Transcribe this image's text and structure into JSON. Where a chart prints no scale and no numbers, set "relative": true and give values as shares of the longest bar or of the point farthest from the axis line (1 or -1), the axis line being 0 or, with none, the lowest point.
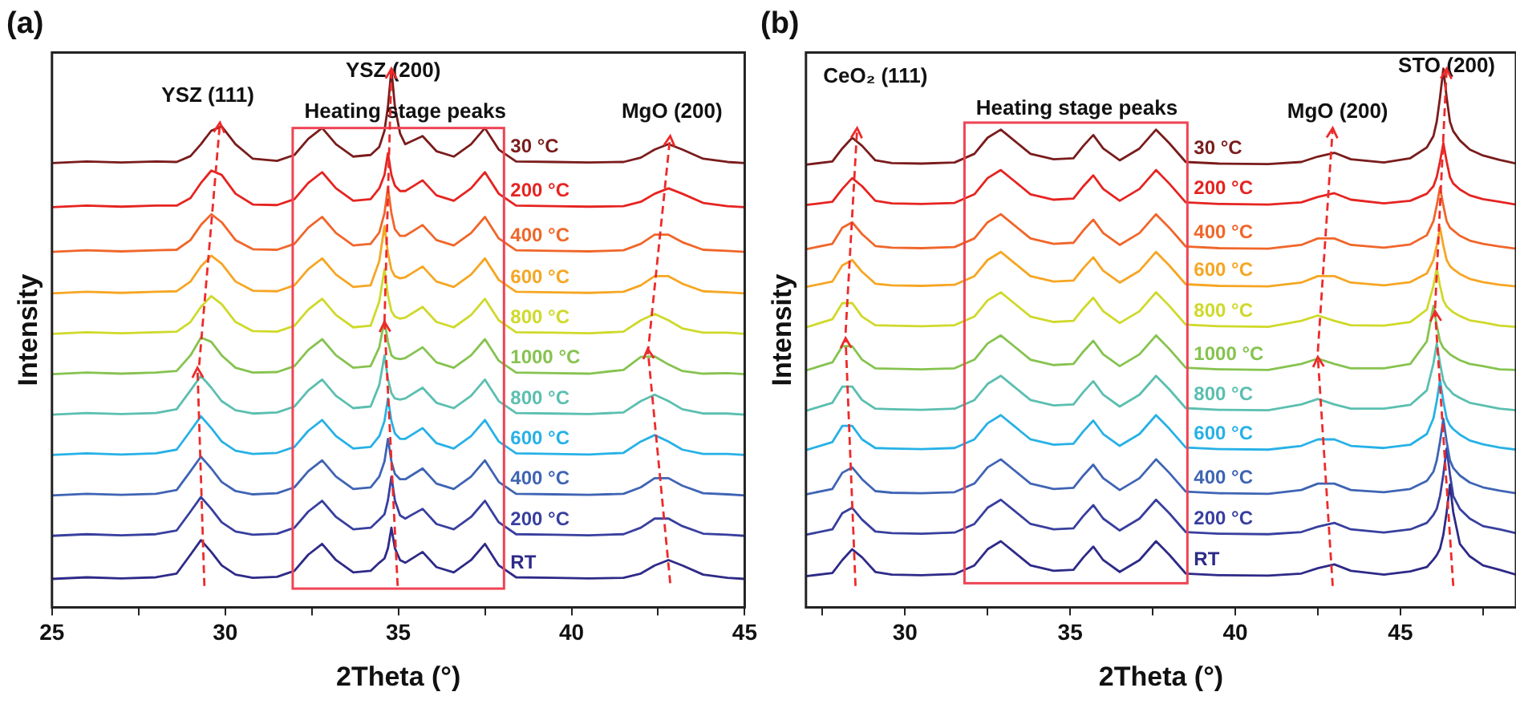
{
  "chart_data": [
    {
      "type": "line",
      "title": "(a)",
      "xlabel": "2Theta (°)",
      "ylabel": "Intensity",
      "relative": true,
      "x": [
        25,
        26,
        27,
        28,
        28.6,
        29,
        29.3,
        29.6,
        29.9,
        30.3,
        30.8,
        31.5,
        32,
        32.4,
        32.8,
        33.2,
        33.7,
        34.2,
        34.45,
        34.6,
        34.7,
        34.8,
        34.9,
        35.05,
        35.2,
        35.7,
        36.1,
        36.6,
        37.1,
        37.5,
        37.9,
        38.4,
        39.5,
        40.5,
        41.5,
        42,
        42.4,
        42.8,
        43.2,
        43.8,
        44.5,
        45
      ],
      "xlim": [
        25,
        45
      ],
      "xticks": [
        25,
        {
          "value": 27.5,
          "label": null
        },
        30,
        {
          "value": 32.5,
          "label": null
        },
        35,
        {
          "value": 37.5,
          "label": null
        },
        40,
        {
          "value": 42.5,
          "label": null
        },
        45
      ],
      "annotations": [
        "YSZ (111)",
        "YSZ (200)",
        "Heating stage peaks",
        "MgO (200)"
      ],
      "series": [
        {
          "name": "30 °C",
          "color": "#7a1c1c",
          "values": [
            0.825,
            0.828,
            0.826,
            0.828,
            0.827,
            0.838,
            0.86,
            0.885,
            0.893,
            0.86,
            0.833,
            0.829,
            0.84,
            0.87,
            0.89,
            0.86,
            0.837,
            0.84,
            0.855,
            0.885,
            0.93,
            1,
            0.93,
            0.88,
            0.86,
            0.875,
            0.847,
            0.837,
            0.86,
            0.89,
            0.85,
            0.828,
            0.827,
            0.826,
            0.827,
            0.835,
            0.85,
            0.86,
            0.85,
            0.833,
            0.827,
            0.825
          ]
        },
        {
          "name": "200 °C",
          "color": "#e52421",
          "values": [
            0.743,
            0.746,
            0.744,
            0.746,
            0.746,
            0.76,
            0.788,
            0.811,
            0.803,
            0.768,
            0.748,
            0.747,
            0.758,
            0.788,
            0.808,
            0.778,
            0.755,
            0.758,
            0.778,
            0.803,
            0.843,
            0.803,
            0.783,
            0.773,
            0.773,
            0.793,
            0.765,
            0.755,
            0.778,
            0.808,
            0.768,
            0.746,
            0.745,
            0.744,
            0.745,
            0.753,
            0.768,
            0.778,
            0.768,
            0.751,
            0.745,
            0.743
          ]
        },
        {
          "name": "400 °C",
          "color": "#f0662a",
          "values": [
            0.66,
            0.663,
            0.661,
            0.663,
            0.664,
            0.682,
            0.71,
            0.73,
            0.715,
            0.682,
            0.665,
            0.664,
            0.675,
            0.705,
            0.725,
            0.695,
            0.672,
            0.675,
            0.696,
            0.732,
            0.78,
            0.732,
            0.702,
            0.69,
            0.69,
            0.71,
            0.682,
            0.672,
            0.695,
            0.725,
            0.685,
            0.663,
            0.662,
            0.661,
            0.663,
            0.675,
            0.692,
            0.692,
            0.678,
            0.664,
            0.662,
            0.66
          ]
        },
        {
          "name": "600 °C",
          "color": "#f6a623",
          "values": [
            0.583,
            0.586,
            0.584,
            0.586,
            0.587,
            0.605,
            0.633,
            0.653,
            0.638,
            0.605,
            0.588,
            0.587,
            0.598,
            0.628,
            0.648,
            0.618,
            0.595,
            0.598,
            0.643,
            0.708,
            0.658,
            0.627,
            0.615,
            0.611,
            0.613,
            0.633,
            0.605,
            0.595,
            0.618,
            0.648,
            0.608,
            0.586,
            0.585,
            0.584,
            0.586,
            0.598,
            0.615,
            0.615,
            0.601,
            0.587,
            0.585,
            0.583
          ]
        },
        {
          "name": "800 °C",
          "color": "#cfd92a",
          "values": [
            0.508,
            0.511,
            0.509,
            0.511,
            0.512,
            0.53,
            0.558,
            0.578,
            0.563,
            0.53,
            0.513,
            0.512,
            0.523,
            0.553,
            0.573,
            0.543,
            0.52,
            0.523,
            0.568,
            0.628,
            0.58,
            0.55,
            0.54,
            0.536,
            0.538,
            0.558,
            0.53,
            0.52,
            0.543,
            0.573,
            0.533,
            0.511,
            0.51,
            0.509,
            0.512,
            0.533,
            0.545,
            0.533,
            0.518,
            0.51,
            0.51,
            0.508
          ]
        },
        {
          "name": "1000 °C",
          "color": "#86c34f",
          "values": [
            0.433,
            0.436,
            0.434,
            0.436,
            0.439,
            0.468,
            0.501,
            0.493,
            0.468,
            0.445,
            0.436,
            0.437,
            0.448,
            0.478,
            0.498,
            0.468,
            0.445,
            0.448,
            0.483,
            0.533,
            0.493,
            0.468,
            0.463,
            0.461,
            0.463,
            0.483,
            0.455,
            0.445,
            0.468,
            0.498,
            0.458,
            0.436,
            0.435,
            0.434,
            0.441,
            0.465,
            0.466,
            0.451,
            0.439,
            0.434,
            0.435,
            0.433
          ]
        },
        {
          "name": "800 °C",
          "color": "#5bbfb0",
          "values": [
            0.358,
            0.361,
            0.359,
            0.361,
            0.368,
            0.403,
            0.43,
            0.408,
            0.383,
            0.366,
            0.36,
            0.362,
            0.373,
            0.403,
            0.423,
            0.393,
            0.37,
            0.373,
            0.413,
            0.468,
            0.424,
            0.398,
            0.388,
            0.386,
            0.388,
            0.408,
            0.38,
            0.37,
            0.393,
            0.423,
            0.383,
            0.361,
            0.36,
            0.359,
            0.362,
            0.383,
            0.395,
            0.383,
            0.368,
            0.36,
            0.36,
            0.358
          ]
        },
        {
          "name": "600 °C",
          "color": "#27b1e6",
          "values": [
            0.283,
            0.286,
            0.284,
            0.286,
            0.293,
            0.328,
            0.355,
            0.333,
            0.308,
            0.291,
            0.285,
            0.287,
            0.298,
            0.328,
            0.348,
            0.318,
            0.295,
            0.298,
            0.318,
            0.346,
            0.388,
            0.346,
            0.323,
            0.313,
            0.313,
            0.333,
            0.305,
            0.295,
            0.318,
            0.348,
            0.308,
            0.286,
            0.285,
            0.284,
            0.287,
            0.308,
            0.32,
            0.308,
            0.293,
            0.285,
            0.285,
            0.283
          ]
        },
        {
          "name": "400 °C",
          "color": "#3f64b4",
          "values": [
            0.208,
            0.211,
            0.209,
            0.211,
            0.218,
            0.253,
            0.28,
            0.258,
            0.233,
            0.216,
            0.21,
            0.212,
            0.223,
            0.253,
            0.273,
            0.243,
            0.22,
            0.223,
            0.243,
            0.271,
            0.313,
            0.271,
            0.248,
            0.238,
            0.238,
            0.258,
            0.23,
            0.22,
            0.243,
            0.273,
            0.233,
            0.211,
            0.21,
            0.209,
            0.211,
            0.223,
            0.24,
            0.24,
            0.226,
            0.212,
            0.21,
            0.208
          ]
        },
        {
          "name": "200 °C",
          "color": "#383f9e",
          "values": [
            0.133,
            0.136,
            0.134,
            0.136,
            0.143,
            0.178,
            0.205,
            0.183,
            0.158,
            0.141,
            0.135,
            0.137,
            0.148,
            0.178,
            0.198,
            0.168,
            0.145,
            0.148,
            0.163,
            0.173,
            0.199,
            0.243,
            0.199,
            0.171,
            0.165,
            0.183,
            0.155,
            0.145,
            0.168,
            0.198,
            0.158,
            0.136,
            0.135,
            0.134,
            0.136,
            0.148,
            0.165,
            0.165,
            0.151,
            0.137,
            0.135,
            0.133
          ]
        },
        {
          "name": "RT",
          "color": "#2e2a88",
          "values": [
            0.053,
            0.056,
            0.054,
            0.056,
            0.063,
            0.098,
            0.125,
            0.103,
            0.078,
            0.061,
            0.055,
            0.057,
            0.068,
            0.098,
            0.118,
            0.088,
            0.065,
            0.068,
            0.083,
            0.091,
            0.11,
            0.148,
            0.11,
            0.088,
            0.083,
            0.103,
            0.075,
            0.065,
            0.088,
            0.118,
            0.078,
            0.056,
            0.055,
            0.054,
            0.055,
            0.063,
            0.078,
            0.088,
            0.078,
            0.061,
            0.055,
            0.053
          ]
        }
      ]
    },
    {
      "type": "line",
      "title": "(b)",
      "xlabel": "2Theta (°)",
      "ylabel": "Intensity",
      "relative": true,
      "x": [
        27,
        27.8,
        28.1,
        28.4,
        28.7,
        29.1,
        29.6,
        30.5,
        31.5,
        32.1,
        32.5,
        32.9,
        33.3,
        33.8,
        34.5,
        35.1,
        35.4,
        35.7,
        36,
        36.5,
        37.1,
        37.6,
        38,
        38.5,
        39.5,
        41,
        42,
        42.5,
        43,
        43.5,
        44.5,
        45.3,
        45.8,
        46,
        46.1,
        46.2,
        46.3,
        46.4,
        46.5,
        46.6,
        46.8,
        47.1,
        47.5,
        48,
        48.5
      ],
      "xlim": [
        27,
        48.5
      ],
      "xticks": [
        {
          "value": 27.5,
          "label": null
        },
        30,
        {
          "value": 32.5,
          "label": null
        },
        35,
        {
          "value": 37.5,
          "label": null
        },
        40,
        {
          "value": 42.5,
          "label": null
        },
        45,
        {
          "value": 47.5,
          "label": null
        }
      ],
      "annotations": [
        "CeO₂ (111)",
        "Heating stage peaks",
        "MgO (200)",
        "STO (200)"
      ],
      "series": [
        {
          "name": "30 °C",
          "color": "#7a1c1c",
          "values": [
            0.822,
            0.828,
            0.852,
            0.872,
            0.857,
            0.83,
            0.825,
            0.824,
            0.826,
            0.842,
            0.872,
            0.887,
            0.867,
            0.842,
            0.832,
            0.834,
            0.857,
            0.877,
            0.852,
            0.83,
            0.852,
            0.887,
            0.862,
            0.827,
            0.824,
            0.823,
            0.827,
            0.837,
            0.844,
            0.832,
            0.826,
            0.834,
            0.854,
            0.875,
            0.902,
            0.947,
            1,
            0.947,
            0.902,
            0.884,
            0.867,
            0.85,
            0.839,
            0.831,
            0.824
          ]
        },
        {
          "name": "200 °C",
          "color": "#e52421",
          "values": [
            0.747,
            0.753,
            0.777,
            0.797,
            0.782,
            0.755,
            0.75,
            0.749,
            0.751,
            0.767,
            0.797,
            0.812,
            0.792,
            0.767,
            0.757,
            0.759,
            0.782,
            0.802,
            0.777,
            0.755,
            0.777,
            0.812,
            0.787,
            0.752,
            0.749,
            0.748,
            0.752,
            0.762,
            0.769,
            0.757,
            0.75,
            0.755,
            0.768,
            0.782,
            0.799,
            0.828,
            0.862,
            0.828,
            0.799,
            0.787,
            0.776,
            0.765,
            0.758,
            0.753,
            0.748
          ]
        },
        {
          "name": "400 °C",
          "color": "#f0662a",
          "values": [
            0.665,
            0.675,
            0.705,
            0.715,
            0.693,
            0.671,
            0.668,
            0.667,
            0.669,
            0.685,
            0.715,
            0.73,
            0.71,
            0.685,
            0.675,
            0.677,
            0.7,
            0.72,
            0.695,
            0.673,
            0.695,
            0.73,
            0.705,
            0.67,
            0.667,
            0.666,
            0.673,
            0.685,
            0.685,
            0.673,
            0.668,
            0.674,
            0.691,
            0.717,
            0.746,
            0.78,
            0.746,
            0.717,
            0.705,
            0.7,
            0.69,
            0.681,
            0.675,
            0.67,
            0.666
          ]
        },
        {
          "name": "600 °C",
          "color": "#f6a623",
          "values": [
            0.595,
            0.605,
            0.635,
            0.645,
            0.623,
            0.601,
            0.598,
            0.597,
            0.599,
            0.615,
            0.645,
            0.66,
            0.64,
            0.615,
            0.605,
            0.607,
            0.63,
            0.65,
            0.625,
            0.603,
            0.625,
            0.66,
            0.635,
            0.6,
            0.597,
            0.596,
            0.603,
            0.615,
            0.615,
            0.603,
            0.598,
            0.604,
            0.62,
            0.645,
            0.672,
            0.705,
            0.672,
            0.645,
            0.634,
            0.628,
            0.619,
            0.61,
            0.604,
            0.599,
            0.596
          ]
        },
        {
          "name": "800 °C",
          "color": "#cfd92a",
          "values": [
            0.52,
            0.535,
            0.565,
            0.565,
            0.54,
            0.524,
            0.523,
            0.522,
            0.524,
            0.54,
            0.57,
            0.585,
            0.565,
            0.54,
            0.53,
            0.532,
            0.555,
            0.575,
            0.55,
            0.528,
            0.55,
            0.585,
            0.56,
            0.525,
            0.522,
            0.521,
            0.532,
            0.542,
            0.532,
            0.524,
            0.523,
            0.53,
            0.553,
            0.597,
            0.63,
            0.597,
            0.57,
            0.559,
            0.553,
            0.548,
            0.541,
            0.533,
            0.529,
            0.523,
            0.521
          ]
        },
        {
          "name": "1000 °C",
          "color": "#86c34f",
          "values": [
            0.44,
            0.455,
            0.485,
            0.485,
            0.46,
            0.444,
            0.443,
            0.442,
            0.444,
            0.46,
            0.49,
            0.505,
            0.485,
            0.46,
            0.45,
            0.452,
            0.475,
            0.495,
            0.47,
            0.448,
            0.47,
            0.505,
            0.48,
            0.445,
            0.442,
            0.441,
            0.452,
            0.462,
            0.452,
            0.444,
            0.444,
            0.452,
            0.494,
            0.56,
            0.524,
            0.494,
            0.482,
            0.476,
            0.47,
            0.466,
            0.459,
            0.452,
            0.448,
            0.442,
            0.441
          ]
        },
        {
          "name": "800 °C",
          "color": "#5bbfb0",
          "values": [
            0.365,
            0.38,
            0.41,
            0.41,
            0.385,
            0.369,
            0.368,
            0.367,
            0.369,
            0.385,
            0.415,
            0.43,
            0.41,
            0.385,
            0.375,
            0.377,
            0.4,
            0.42,
            0.395,
            0.373,
            0.395,
            0.43,
            0.405,
            0.37,
            0.367,
            0.366,
            0.377,
            0.387,
            0.377,
            0.369,
            0.369,
            0.376,
            0.403,
            0.453,
            0.49,
            0.453,
            0.421,
            0.409,
            0.403,
            0.396,
            0.389,
            0.38,
            0.375,
            0.369,
            0.366
          ]
        },
        {
          "name": "600 °C",
          "color": "#27b1e6",
          "values": [
            0.292,
            0.307,
            0.337,
            0.337,
            0.312,
            0.296,
            0.295,
            0.294,
            0.296,
            0.312,
            0.342,
            0.357,
            0.337,
            0.312,
            0.302,
            0.304,
            0.327,
            0.347,
            0.322,
            0.3,
            0.322,
            0.357,
            0.332,
            0.297,
            0.294,
            0.293,
            0.3,
            0.312,
            0.312,
            0.3,
            0.296,
            0.302,
            0.322,
            0.351,
            0.383,
            0.422,
            0.383,
            0.351,
            0.338,
            0.331,
            0.321,
            0.31,
            0.303,
            0.297,
            0.293
          ]
        },
        {
          "name": "400 °C",
          "color": "#3f64b4",
          "values": [
            0.21,
            0.22,
            0.25,
            0.26,
            0.238,
            0.216,
            0.213,
            0.212,
            0.214,
            0.23,
            0.26,
            0.275,
            0.255,
            0.23,
            0.22,
            0.222,
            0.245,
            0.265,
            0.24,
            0.218,
            0.24,
            0.275,
            0.25,
            0.215,
            0.212,
            0.211,
            0.218,
            0.23,
            0.23,
            0.218,
            0.214,
            0.22,
            0.235,
            0.252,
            0.273,
            0.308,
            0.35,
            0.308,
            0.273,
            0.259,
            0.245,
            0.232,
            0.223,
            0.217,
            0.212
          ]
        },
        {
          "name": "200 °C",
          "color": "#383f9e",
          "values": [
            0.135,
            0.145,
            0.175,
            0.185,
            0.163,
            0.141,
            0.138,
            0.137,
            0.139,
            0.155,
            0.185,
            0.2,
            0.18,
            0.155,
            0.145,
            0.147,
            0.17,
            0.19,
            0.165,
            0.143,
            0.165,
            0.2,
            0.175,
            0.14,
            0.137,
            0.136,
            0.14,
            0.15,
            0.157,
            0.145,
            0.139,
            0.145,
            0.157,
            0.172,
            0.183,
            0.207,
            0.247,
            0.295,
            0.247,
            0.207,
            0.183,
            0.165,
            0.151,
            0.145,
            0.138
          ]
        },
        {
          "name": "RT",
          "color": "#2e2a88",
          "values": [
            0.058,
            0.064,
            0.088,
            0.108,
            0.093,
            0.066,
            0.061,
            0.06,
            0.062,
            0.078,
            0.108,
            0.123,
            0.103,
            0.078,
            0.068,
            0.07,
            0.093,
            0.113,
            0.088,
            0.066,
            0.088,
            0.123,
            0.098,
            0.063,
            0.06,
            0.059,
            0.063,
            0.073,
            0.08,
            0.068,
            0.061,
            0.067,
            0.075,
            0.089,
            0.097,
            0.109,
            0.135,
            0.177,
            0.228,
            0.177,
            0.118,
            0.095,
            0.078,
            0.07,
            0.061
          ]
        }
      ]
    }
  ]
}
